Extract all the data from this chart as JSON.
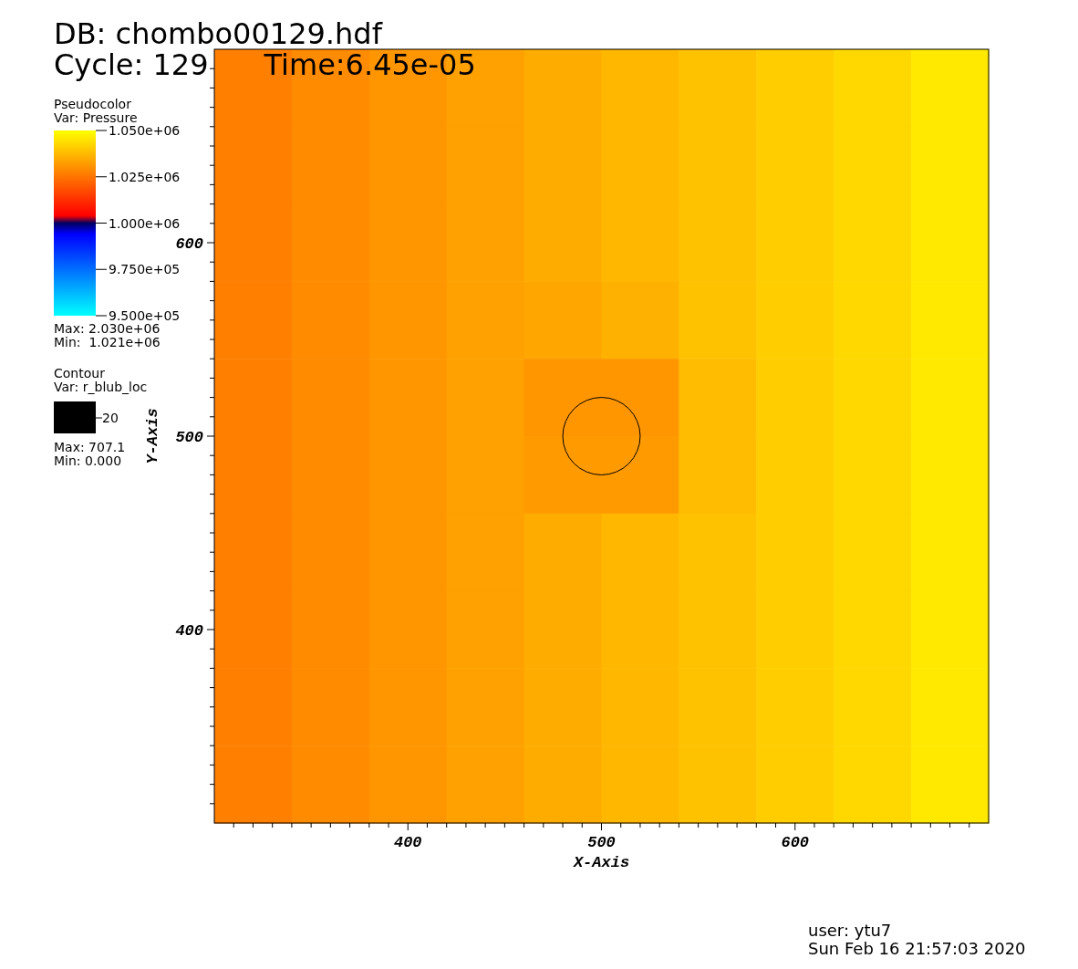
{
  "chart_data": {
    "type": "heatmap",
    "title": "DB: chombo00129.hdf",
    "subtitle": "Cycle: 129      Time:6.45e-05",
    "xlabel": "X-Axis",
    "ylabel": "Y-Axis",
    "legend_title": "Pseudocolor\nVar: Pressure",
    "clabel": "Contour\nVar: r_blub_loc",
    "annotations": [
      "Max: 2.030e+06",
      "Min:  1.021e+06",
      "Max: 707.1",
      "Min: 0.000",
      "user: ytu7",
      "Sun Feb 16 21:57:03 2020",
      "20"
    ],
    "cells": [
      [
        1027000,
        1029000,
        1031000,
        1033000,
        1035000,
        1037000,
        1039000,
        1041000,
        1043000,
        1046000
      ],
      [
        1027000,
        1029000,
        1031000,
        1033000,
        1035000,
        1037000,
        1039000,
        1041000,
        1043000,
        1046000
      ],
      [
        1027000,
        1029000,
        1031000,
        1033000,
        1035000,
        1037000,
        1039000,
        1041000,
        1043000,
        1046000
      ],
      [
        1027000,
        1029000,
        1031000,
        1033000,
        1034000,
        1036000,
        1039000,
        1041000,
        1043000,
        1046000
      ],
      [
        1027000,
        1029000,
        1031000,
        1033000,
        1031000,
        1031000,
        1038000,
        1041000,
        1043000,
        1046000
      ],
      [
        1027000,
        1029000,
        1031000,
        1033000,
        1032000,
        1032000,
        1038000,
        1041000,
        1043000,
        1046000
      ],
      [
        1027000,
        1029000,
        1031000,
        1033000,
        1035000,
        1037000,
        1039000,
        1041000,
        1043000,
        1046000
      ],
      [
        1027000,
        1029000,
        1031000,
        1033000,
        1035000,
        1037000,
        1039000,
        1041000,
        1043000,
        1046000
      ],
      [
        1027000,
        1029000,
        1031000,
        1033000,
        1035000,
        1037000,
        1039000,
        1041000,
        1043000,
        1046000
      ],
      [
        1027000,
        1029000,
        1031000,
        1033000,
        1035000,
        1037000,
        1039000,
        1041000,
        1043000,
        1046000
      ]
    ],
    "clim": [
      950000,
      1050000
    ],
    "cticks": [
      {
        "value": 1050000,
        "label": "1.050e+06"
      },
      {
        "value": 1025000,
        "label": "1.025e+06"
      },
      {
        "value": 1000000,
        "label": "1.000e+06"
      },
      {
        "value": 975000,
        "label": "9.750e+05"
      },
      {
        "value": 950000,
        "label": "9.500e+05"
      }
    ],
    "xlim": [
      300,
      700
    ],
    "ylim": [
      300,
      700
    ],
    "xticks": [
      {
        "value": 310,
        "label": null
      },
      {
        "value": 320,
        "label": null
      },
      {
        "value": 330,
        "label": null
      },
      {
        "value": 340,
        "label": null
      },
      {
        "value": 350,
        "label": null
      },
      {
        "value": 360,
        "label": null
      },
      {
        "value": 370,
        "label": null
      },
      {
        "value": 380,
        "label": null
      },
      {
        "value": 390,
        "label": null
      },
      400,
      {
        "value": 410,
        "label": null
      },
      {
        "value": 420,
        "label": null
      },
      {
        "value": 430,
        "label": null
      },
      {
        "value": 440,
        "label": null
      },
      {
        "value": 450,
        "label": null
      },
      {
        "value": 460,
        "label": null
      },
      {
        "value": 470,
        "label": null
      },
      {
        "value": 480,
        "label": null
      },
      {
        "value": 490,
        "label": null
      },
      500,
      {
        "value": 510,
        "label": null
      },
      {
        "value": 520,
        "label": null
      },
      {
        "value": 530,
        "label": null
      },
      {
        "value": 540,
        "label": null
      },
      {
        "value": 550,
        "label": null
      },
      {
        "value": 560,
        "label": null
      },
      {
        "value": 570,
        "label": null
      },
      {
        "value": 580,
        "label": null
      },
      {
        "value": 590,
        "label": null
      },
      600,
      {
        "value": 610,
        "label": null
      },
      {
        "value": 620,
        "label": null
      },
      {
        "value": 630,
        "label": null
      },
      {
        "value": 640,
        "label": null
      },
      {
        "value": 650,
        "label": null
      },
      {
        "value": 660,
        "label": null
      },
      {
        "value": 670,
        "label": null
      },
      {
        "value": 680,
        "label": null
      },
      {
        "value": 690,
        "label": null
      }
    ],
    "yticks": [
      {
        "value": 310,
        "label": null
      },
      {
        "value": 320,
        "label": null
      },
      {
        "value": 330,
        "label": null
      },
      {
        "value": 340,
        "label": null
      },
      {
        "value": 350,
        "label": null
      },
      {
        "value": 360,
        "label": null
      },
      {
        "value": 370,
        "label": null
      },
      {
        "value": 380,
        "label": null
      },
      {
        "value": 390,
        "label": null
      },
      400,
      {
        "value": 410,
        "label": null
      },
      {
        "value": 420,
        "label": null
      },
      {
        "value": 430,
        "label": null
      },
      {
        "value": 440,
        "label": null
      },
      {
        "value": 450,
        "label": null
      },
      {
        "value": 460,
        "label": null
      },
      {
        "value": 470,
        "label": null
      },
      {
        "value": 480,
        "label": null
      },
      {
        "value": 490,
        "label": null
      },
      500,
      {
        "value": 510,
        "label": null
      },
      {
        "value": 520,
        "label": null
      },
      {
        "value": 530,
        "label": null
      },
      {
        "value": 540,
        "label": null
      },
      {
        "value": 550,
        "label": null
      },
      {
        "value": 560,
        "label": null
      },
      {
        "value": 570,
        "label": null
      },
      {
        "value": 580,
        "label": null
      },
      {
        "value": 590,
        "label": null
      },
      600,
      {
        "value": 610,
        "label": null
      },
      {
        "value": 620,
        "label": null
      },
      {
        "value": 630,
        "label": null
      },
      {
        "value": 640,
        "label": null
      },
      {
        "value": 650,
        "label": null
      },
      {
        "value": 660,
        "label": null
      },
      {
        "value": 670,
        "label": null
      },
      {
        "value": 680,
        "label": null
      },
      {
        "value": 690,
        "label": null
      }
    ]
  }
}
